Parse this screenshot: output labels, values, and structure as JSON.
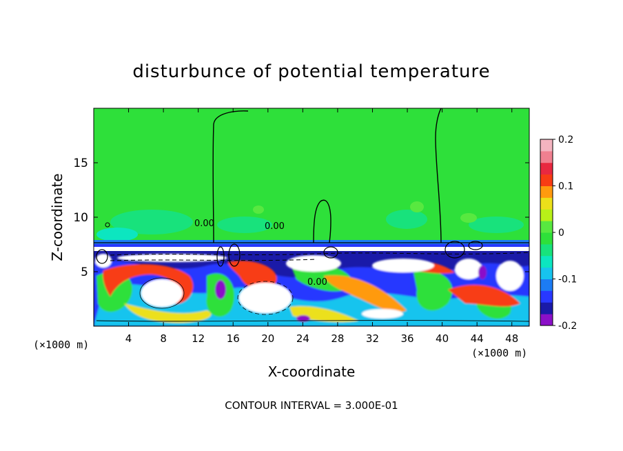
{
  "chart_data": {
    "type": "heatmap",
    "title": "disturbunce of potential temperature",
    "xlabel": "X-coordinate",
    "ylabel": "Z-coordinate",
    "x_unit": "(×1000 m)",
    "z_unit": "(×1000 m)",
    "xlim": [
      0,
      50
    ],
    "ylim": [
      0,
      20
    ],
    "x_ticks": [
      "4",
      "8",
      "12",
      "16",
      "20",
      "24",
      "28",
      "32",
      "36",
      "40",
      "44",
      "48"
    ],
    "y_ticks": [
      "5",
      "10",
      "15"
    ],
    "contour_labels": [
      "0.00",
      "0.00",
      "0.00"
    ],
    "contour_interval_text": "CONTOUR INTERVAL = 3.000E-01",
    "colorbar": {
      "range": [
        -0.2,
        0.2
      ],
      "tick_labels": [
        "0.2",
        "0.1",
        "0",
        "-0.1",
        "-0.2"
      ],
      "tick_values": [
        0.2,
        0.1,
        0,
        -0.1,
        -0.2
      ],
      "colors": [
        "#8b10c8",
        "#1a1aa8",
        "#2838ff",
        "#1c7cf4",
        "#17c4ee",
        "#0ce6c0",
        "#18e27c",
        "#2ee03a",
        "#58e840",
        "#b8f018",
        "#ece01a",
        "#ff9a0e",
        "#f83c14",
        "#e82840",
        "#f08090",
        "#f4b4c0"
      ]
    },
    "grid": false,
    "legend": "colorbar-right"
  }
}
